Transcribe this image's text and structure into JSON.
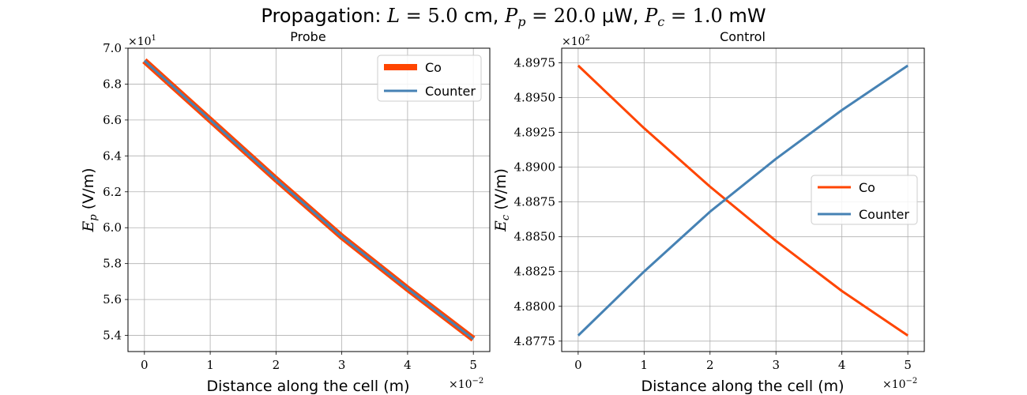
{
  "figure": {
    "suptitle": {
      "prefix": "Propagation: ",
      "L_symbol": "L",
      "L_value": " = 5.0",
      "L_unit": " cm, ",
      "Pp_symbol": "P",
      "Pp_sub": "p",
      "Pp_value": " = 20.0",
      "Pp_unit": " μW, ",
      "Pc_symbol": "P",
      "Pc_sub": "c",
      "Pc_value": " = 1.0",
      "Pc_unit": " mW"
    }
  },
  "chart_data": [
    {
      "type": "line",
      "title": "Probe",
      "xlabel": "Distance along the cell (m)",
      "ylabel": {
        "symbol": "E",
        "sub": "p",
        "unit": " (V/m)"
      },
      "x_multiplier": {
        "base": "×10",
        "exp": "−2"
      },
      "y_multiplier": {
        "base": "×10",
        "exp": "1"
      },
      "xlim": [
        -0.25,
        5.25
      ],
      "ylim": [
        5.31,
        7.0
      ],
      "xticks": [
        0,
        1,
        2,
        3,
        4,
        5
      ],
      "xtick_labels": [
        "0",
        "1",
        "2",
        "3",
        "4",
        "5"
      ],
      "yticks": [
        5.4,
        5.6,
        5.8,
        6.0,
        6.2,
        6.4,
        6.6,
        6.8,
        7.0
      ],
      "ytick_labels": [
        "5.4",
        "5.6",
        "5.8",
        "6.0",
        "6.2",
        "6.4",
        "6.6",
        "6.8",
        "7.0"
      ],
      "grid": true,
      "legend_position": "upper right",
      "series": [
        {
          "name": "Co",
          "color": "#ff4500",
          "linewidth": 8,
          "x": [
            0,
            1,
            2,
            3,
            4,
            5
          ],
          "y": [
            6.93,
            6.6,
            6.27,
            5.95,
            5.66,
            5.38
          ]
        },
        {
          "name": "Counter",
          "color": "#4682b4",
          "linewidth": 3,
          "x": [
            0,
            1,
            2,
            3,
            4,
            5
          ],
          "y": [
            6.93,
            6.6,
            6.27,
            5.95,
            5.66,
            5.38
          ]
        }
      ]
    },
    {
      "type": "line",
      "title": "Control",
      "xlabel": "Distance along the cell (m)",
      "ylabel": {
        "symbol": "E",
        "sub": "c",
        "unit": " (V/m)"
      },
      "x_multiplier": {
        "base": "×10",
        "exp": "−2"
      },
      "y_multiplier": {
        "base": "×10",
        "exp": "2"
      },
      "xlim": [
        -0.25,
        5.25
      ],
      "ylim": [
        4.87675,
        4.89855
      ],
      "xticks": [
        0,
        1,
        2,
        3,
        4,
        5
      ],
      "xtick_labels": [
        "0",
        "1",
        "2",
        "3",
        "4",
        "5"
      ],
      "yticks": [
        4.8775,
        4.88,
        4.8825,
        4.885,
        4.8875,
        4.89,
        4.8925,
        4.895,
        4.8975
      ],
      "ytick_labels": [
        "4.8775",
        "4.8800",
        "4.8825",
        "4.8850",
        "4.8875",
        "4.8900",
        "4.8925",
        "4.8950",
        "4.8975"
      ],
      "grid": true,
      "legend_position": "center right",
      "series": [
        {
          "name": "Co",
          "color": "#ff4500",
          "linewidth": 3,
          "x": [
            0,
            1,
            2,
            3,
            4,
            5
          ],
          "y": [
            4.8973,
            4.8928,
            4.8886,
            4.8847,
            4.8811,
            4.8779
          ]
        },
        {
          "name": "Counter",
          "color": "#4682b4",
          "linewidth": 3,
          "x": [
            0,
            1,
            2,
            3,
            4,
            5
          ],
          "y": [
            4.8779,
            4.8825,
            4.8868,
            4.8906,
            4.8941,
            4.8973
          ]
        }
      ]
    }
  ]
}
